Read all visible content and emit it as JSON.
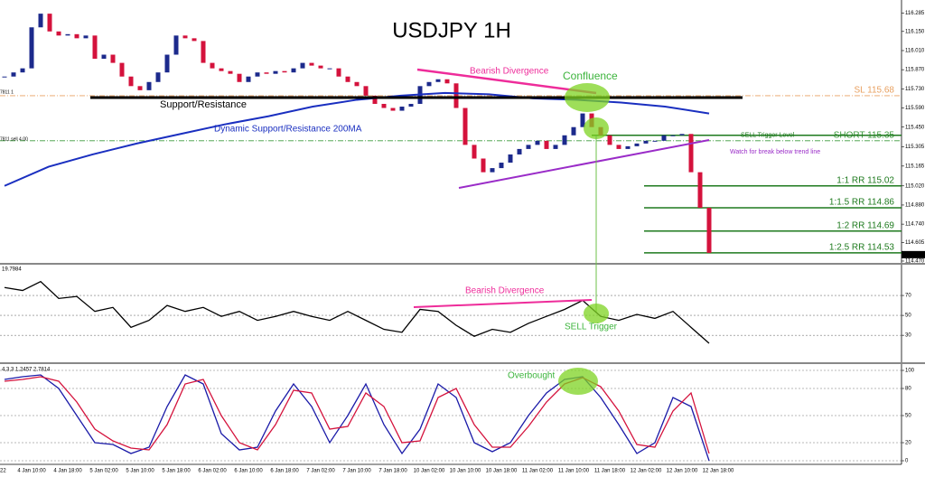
{
  "chart_data": [
    {
      "type": "candlestick",
      "title": "USDJPY 1H",
      "up_color": "#1c2a8c",
      "down_color": "#d4123c",
      "values": [
        115.82,
        115.85,
        115.88,
        116.18,
        116.28,
        116.15,
        116.12,
        116.13,
        116.1,
        116.12,
        115.95,
        115.98,
        115.92,
        115.82,
        115.75,
        115.72,
        115.78,
        115.85,
        115.98,
        116.12,
        116.1,
        116.08,
        115.92,
        115.88,
        115.86,
        115.84,
        115.78,
        115.82,
        115.85,
        115.84,
        115.86,
        115.85,
        115.88,
        115.92,
        115.9,
        115.88,
        115.88,
        115.82,
        115.78,
        115.75,
        115.68,
        115.62,
        115.59,
        115.57,
        115.6,
        115.62,
        115.75,
        115.78,
        115.8,
        115.77,
        115.59,
        115.32,
        115.22,
        115.12,
        115.15,
        115.19,
        115.25,
        115.29,
        115.32,
        115.35,
        115.29,
        115.32,
        115.39,
        115.45,
        115.55,
        115.45,
        115.39,
        115.32,
        115.29,
        115.31,
        115.33,
        115.35,
        115.35,
        115.39,
        115.39,
        115.4,
        115.12,
        114.86,
        114.53
      ],
      "ma": {
        "name": "Dynamic Support/Resistance 200MA",
        "color": "#1a2fc0",
        "values": [
          115.02,
          115.16,
          115.25,
          115.33,
          115.4,
          115.47,
          115.53,
          115.6,
          115.65,
          115.68,
          115.7,
          115.69,
          115.66,
          115.65,
          115.63,
          115.6,
          115.55
        ]
      },
      "ylim": [
        114.45,
        116.38
      ],
      "yticks": [
        116.285,
        {
          "value": 116.15,
          "label": "116.150"
        },
        {
          "value": 116.01,
          "label": "116.010"
        },
        {
          "value": 115.87,
          "label": "115.870"
        },
        {
          "value": 115.73,
          "label": "115.730"
        },
        {
          "value": 115.59,
          "label": "115.590"
        },
        {
          "value": 115.45,
          "label": "115.450"
        },
        115.305,
        115.165,
        {
          "value": 115.02,
          "label": "115.020"
        },
        {
          "value": 114.88,
          "label": "114.880"
        },
        {
          "value": 114.74,
          "label": "114.740"
        },
        114.605,
        {
          "value": 114.47,
          "label": "114.470"
        }
      ],
      "last_price": {
        "value": 114.517,
        "label": "114.517"
      },
      "levels": [
        {
          "label": "SL 115.68",
          "value": 115.68,
          "color": "#e8a060",
          "style": "dashdot"
        },
        {
          "label": "SHORT 115.35",
          "value": 115.35,
          "color": "#3c9a3c",
          "style": "dashdot"
        },
        {
          "label": "SELL Trigger Level",
          "value": 115.39,
          "color": "#1e7a1e",
          "style": "trigger"
        },
        {
          "label": "1:1 RR 115.02",
          "value": 115.02,
          "color": "#1e7a1e",
          "style": "target"
        },
        {
          "label": "1:1.5 RR 114.86",
          "value": 114.86,
          "color": "#1e7a1e",
          "style": "target"
        },
        {
          "label": "1:2 RR 114.69",
          "value": 114.69,
          "color": "#1e7a1e",
          "style": "target"
        },
        {
          "label": "1:2.5 RR 114.53",
          "value": 114.53,
          "color": "#1e7a1e",
          "style": "target"
        }
      ],
      "annotations": {
        "bearish": "Bearish Divergence",
        "confluence": "Confluence",
        "support": "Support/Resistance",
        "watch": "Watch for break below trend line",
        "order1": "7811 1",
        "order2": "7811 sell 4.00"
      }
    },
    {
      "type": "line",
      "header": "19.7984",
      "series": [
        {
          "name": "RSI",
          "color": "#000000",
          "values": [
            78,
            75,
            84,
            67,
            69,
            54,
            58,
            38,
            45,
            60,
            54,
            58,
            49,
            54,
            45,
            49,
            54,
            49,
            45,
            54,
            45,
            36,
            33,
            56,
            54,
            40,
            29,
            36,
            33,
            42,
            49,
            56,
            65,
            49,
            45,
            51,
            47,
            54,
            38,
            22
          ]
        }
      ],
      "ylim": [
        2,
        100
      ],
      "yticks": [
        70,
        50,
        30
      ],
      "annotations": {
        "bearish": "Bearish Divergence",
        "sell": "SELL Trigger"
      }
    },
    {
      "type": "line",
      "header": "4,3,3 1.2457 2.7814",
      "series": [
        {
          "name": "%K",
          "color": "#1a1aa8",
          "values": [
            90,
            93,
            95,
            80,
            50,
            20,
            18,
            8,
            15,
            60,
            95,
            85,
            30,
            12,
            15,
            55,
            85,
            60,
            20,
            50,
            85,
            40,
            8,
            35,
            85,
            70,
            20,
            10,
            20,
            50,
            75,
            90,
            93,
            70,
            40,
            8,
            20,
            70,
            60,
            0
          ]
        },
        {
          "name": "%D",
          "color": "#d4123c",
          "values": [
            88,
            90,
            93,
            88,
            65,
            35,
            22,
            14,
            12,
            40,
            85,
            90,
            50,
            20,
            12,
            40,
            78,
            75,
            35,
            38,
            75,
            60,
            20,
            22,
            70,
            80,
            40,
            15,
            15,
            38,
            65,
            85,
            92,
            82,
            55,
            18,
            15,
            55,
            75,
            8
          ]
        }
      ],
      "ylim": [
        -5,
        105
      ],
      "yticks": [
        100,
        80,
        50,
        20,
        0
      ],
      "annotations": {
        "overbought": "Overbought"
      }
    }
  ],
  "time_axis": [
    "22",
    "4 Jan 10:00",
    "4 Jan 18:00",
    "5 Jan 02:00",
    "5 Jan 10:00",
    "5 Jan 18:00",
    "6 Jan 02:00",
    "6 Jan 10:00",
    "6 Jan 18:00",
    "7 Jan 02:00",
    "7 Jan 10:00",
    "7 Jan 18:00",
    "10 Jan 02:00",
    "10 Jan 10:00",
    "10 Jan 18:00",
    "11 Jan 02:00",
    "11 Jan 10:00",
    "11 Jan 18:00",
    "12 Jan 02:00",
    "12 Jan 10:00",
    "12 Jan 18:00"
  ]
}
